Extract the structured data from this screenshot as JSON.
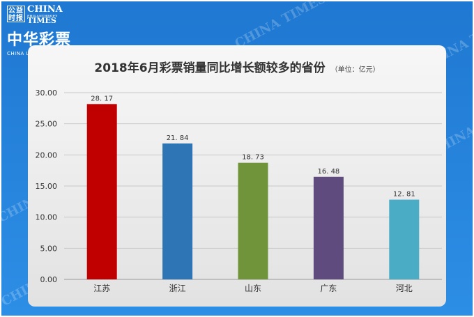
{
  "logo": {
    "seal_text": "公益时报",
    "times_line1": "CHINA",
    "times_line2": "PHILANTHROPY",
    "times_line3": "TIMES",
    "brand_cn": "中华彩票",
    "brand_en": "CHINA LOTTERY NEWS"
  },
  "watermark": "CHINA TIMES",
  "chart_data": {
    "type": "bar",
    "title": "2018年6月彩票销量同比增长额较多的省份",
    "unit_note": "（单位：亿元）",
    "categories": [
      "江苏",
      "浙江",
      "山东",
      "广东",
      "河北"
    ],
    "values": [
      28.17,
      21.84,
      18.73,
      16.48,
      12.81
    ],
    "value_labels": [
      "28. 17",
      "21. 84",
      "18. 73",
      "16. 48",
      "12. 81"
    ],
    "colors": [
      "#c00000",
      "#2e75b6",
      "#70943a",
      "#5f4b7d",
      "#4bacc6"
    ],
    "ylim": [
      0,
      30
    ],
    "yticks": [
      "0.00",
      "5.00",
      "10.00",
      "15.00",
      "20.00",
      "25.00",
      "30.00"
    ],
    "grid": true,
    "legend": "none"
  }
}
